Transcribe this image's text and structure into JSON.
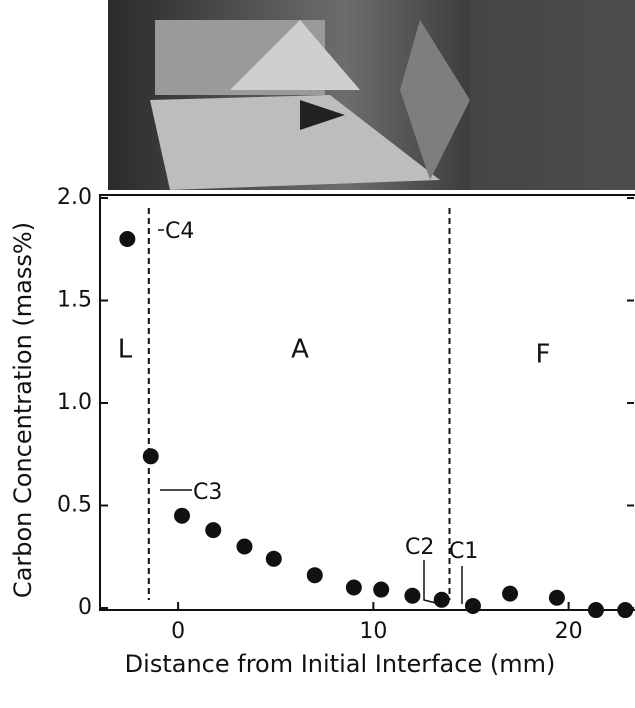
{
  "chart_data": {
    "type": "scatter",
    "x_label": "Distance from Initial Interface (mm)",
    "y_label": "Carbon Concentration (mass%)",
    "x": [
      -2.6,
      -1.4,
      0.2,
      1.8,
      3.4,
      4.9,
      7.0,
      9.0,
      10.4,
      12.0,
      13.5,
      15.1,
      17.0,
      19.4,
      21.4,
      22.9
    ],
    "values": [
      1.8,
      0.74,
      0.45,
      0.38,
      0.3,
      0.24,
      0.16,
      0.1,
      0.09,
      0.06,
      0.04,
      0.01,
      0.07,
      0.05,
      -0.01,
      -0.01
    ],
    "color": "#111111",
    "xlim": [
      -4,
      23.4
    ],
    "ylim": [
      0,
      2.0
    ],
    "xticks": [
      0,
      10,
      20
    ],
    "yticks": [
      0,
      0.5,
      {
        "value": 1,
        "label": "1.0"
      },
      1.5,
      {
        "value": 2,
        "label": "2.0"
      }
    ],
    "boundaries": [
      -1.5,
      13.9
    ],
    "region_labels": [
      "L",
      "A",
      "F"
    ],
    "annotations": [
      "C4",
      "C3",
      "C2",
      "C1"
    ]
  }
}
